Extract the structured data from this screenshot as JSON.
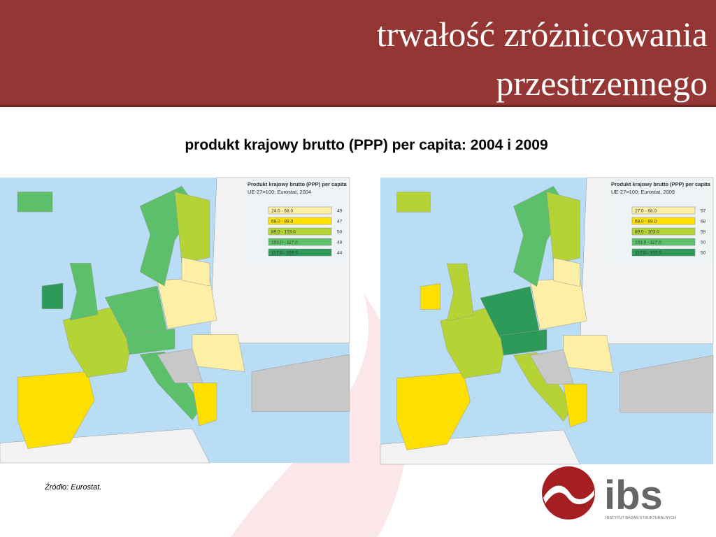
{
  "header": {
    "title": [
      "trwałość zróżnicowania",
      "przestrzennego"
    ]
  },
  "subtitle": "produkt krajowy brutto (PPP) per capita: 2004 i 2009",
  "maps": [
    {
      "legend": {
        "title": "Produkt krajowy brutto (PPP) per capita",
        "subtitle": "UE-27=100; Eurostat, 2004",
        "items": [
          {
            "range": "24.0 - 68.0",
            "count": 49,
            "color": "#fdf0a6"
          },
          {
            "range": "68.0 - 89.0",
            "count": 47,
            "color": "#fde000"
          },
          {
            "range": "89.0 - 103.0",
            "count": 50,
            "color": "#b5d334"
          },
          {
            "range": "103.0 - 117.0",
            "count": 48,
            "color": "#5cc06a"
          },
          {
            "range": "117.0 - 329.0",
            "count": 44,
            "color": "#2e9a5a"
          }
        ]
      }
    },
    {
      "legend": {
        "title": "Produkt krajowy brutto (PPP) per capita",
        "subtitle": "UE-27=100; Eurostat, 2009",
        "items": [
          {
            "range": "27.0 - 68.0",
            "count": 57,
            "color": "#fdf0a6"
          },
          {
            "range": "68.0 - 89.0",
            "count": 68,
            "color": "#fde000"
          },
          {
            "range": "89.0 - 103.0",
            "count": 58,
            "color": "#b5d334"
          },
          {
            "range": "103.0 - 117.0",
            "count": 50,
            "color": "#5cc06a"
          },
          {
            "range": "117.0 - 332.0",
            "count": 50,
            "color": "#2e9a5a"
          }
        ]
      }
    }
  ],
  "source": "Źródło: Eurostat.",
  "logo": {
    "name": "ibs",
    "tagline": "INSTYTUT BADAŃ STRUKTURALNYCH"
  }
}
